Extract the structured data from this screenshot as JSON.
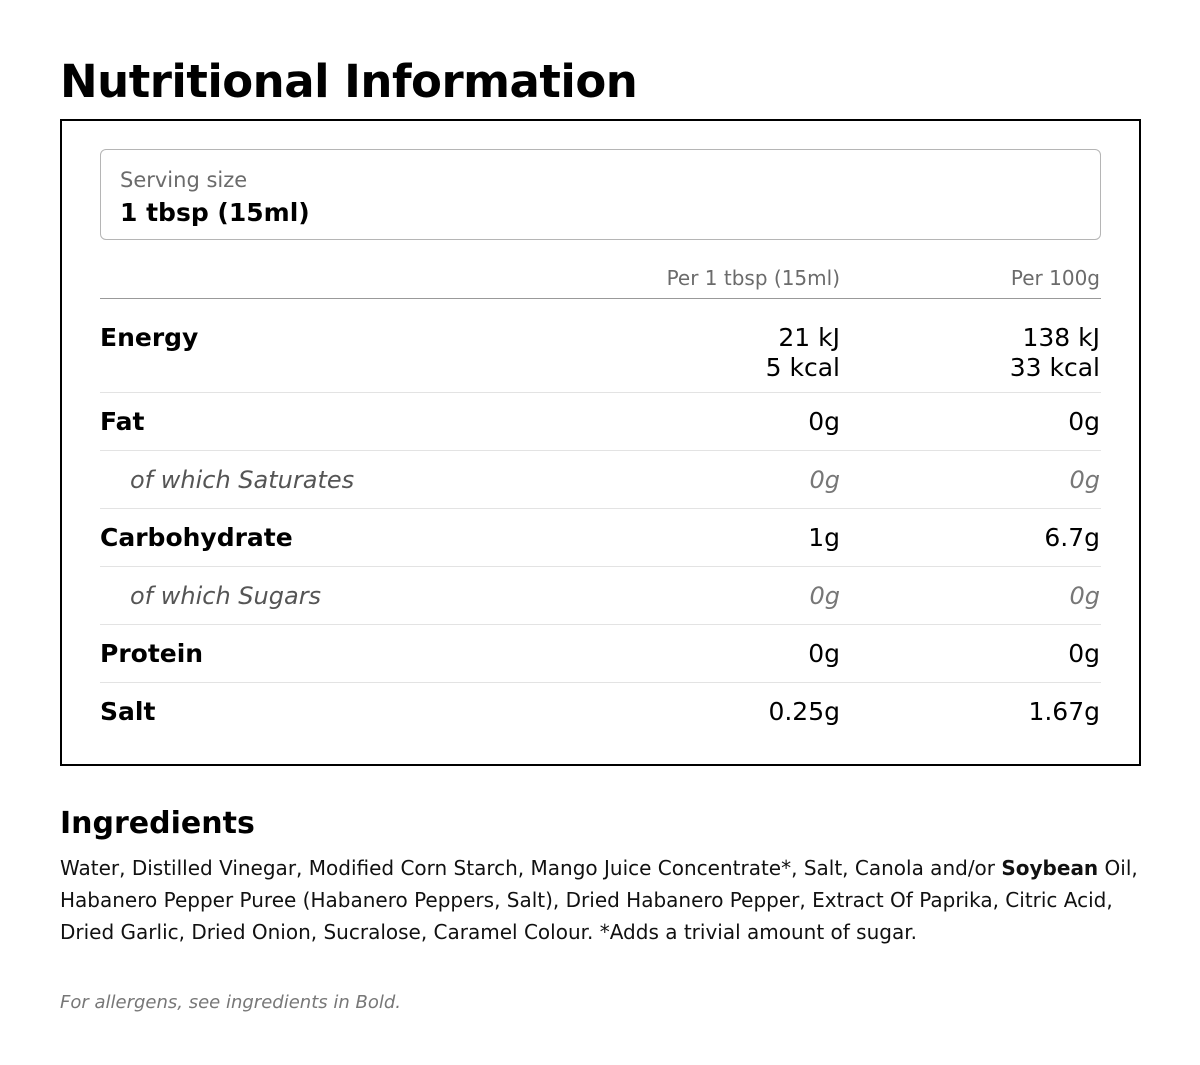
{
  "title": "Nutritional Information",
  "serving": {
    "label": "Serving size",
    "value": "1 tbsp (15ml)"
  },
  "columns": [
    "Per 1 tbsp (15ml)",
    "Per 100g"
  ],
  "energy": {
    "label": "Energy",
    "per_serving_kj": "21 kJ",
    "per_serving_kcal": "5 kcal",
    "per_100g_kj": "138 kJ",
    "per_100g_kcal": "33 kcal"
  },
  "rows": [
    {
      "label": "Fat",
      "per_serving": "0g",
      "per_100g": "0g",
      "sub": false
    },
    {
      "label": "of which Saturates",
      "per_serving": "0g",
      "per_100g": "0g",
      "sub": true
    },
    {
      "label": "Carbohydrate",
      "per_serving": "1g",
      "per_100g": "6.7g",
      "sub": false
    },
    {
      "label": "of which Sugars",
      "per_serving": "0g",
      "per_100g": "0g",
      "sub": true
    },
    {
      "label": "Protein",
      "per_serving": "0g",
      "per_100g": "0g",
      "sub": false
    },
    {
      "label": "Salt",
      "per_serving": "0.25g",
      "per_100g": "1.67g",
      "sub": false
    }
  ],
  "ingredients": {
    "heading": "Ingredients",
    "text_before": "Water, Distilled Vinegar, Modified Corn Starch, Mango Juice Concentrate*, Salt, Canola and/or ",
    "allergen": "Soybean",
    "text_after": " Oil, Habanero Pepper Puree (Habanero Peppers, Salt), Dried Habanero Pepper, Extract Of Paprika, Citric Acid, Dried Garlic, Dried Onion, Sucralose, Caramel Colour. *Adds a trivial amount of sugar."
  },
  "allergen_note": "For allergens, see ingredients in Bold."
}
